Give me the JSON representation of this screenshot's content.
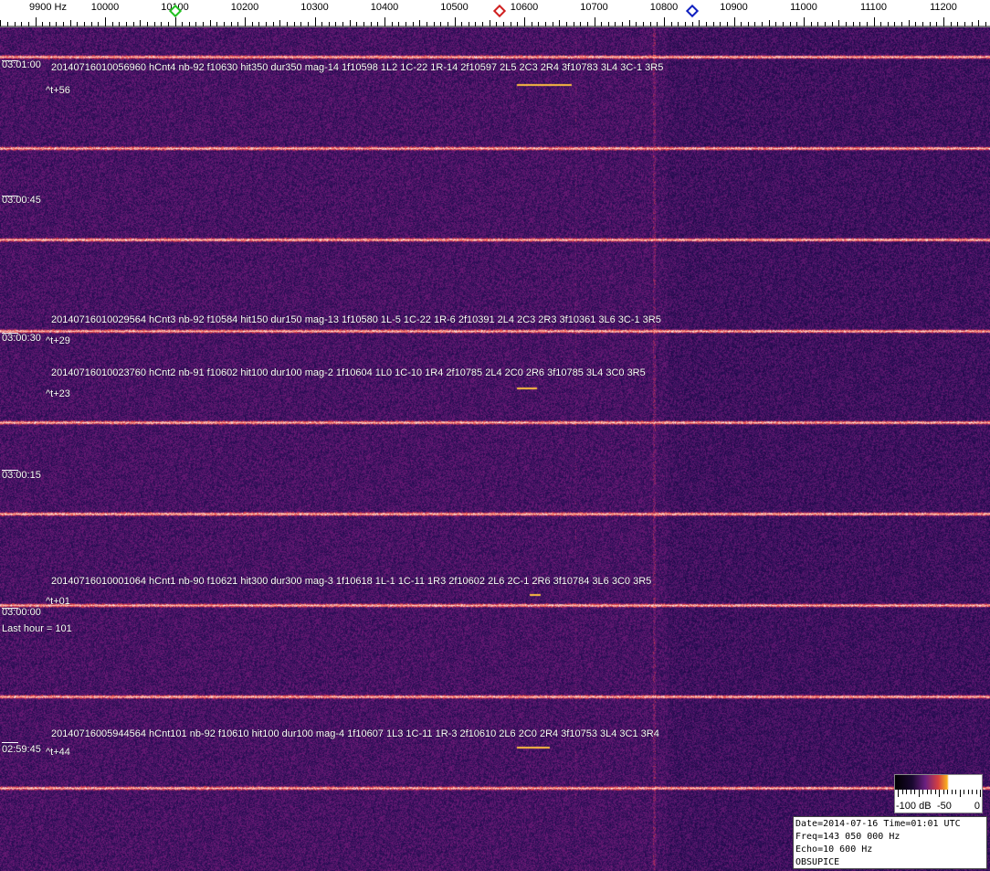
{
  "ruler": {
    "unit": "Hz",
    "labels": [
      "9900 Hz",
      "10000",
      "10100",
      "10200",
      "10300",
      "10400",
      "10500",
      "10600",
      "10700",
      "10800",
      "10900",
      "11000",
      "11100",
      "11200"
    ],
    "freqs": [
      9900,
      10000,
      10100,
      10200,
      10300,
      10400,
      10500,
      10600,
      10700,
      10800,
      10900,
      11000,
      11100,
      11200
    ],
    "markers": [
      {
        "name": "green-marker",
        "freq": 10100,
        "color": "#20c020"
      },
      {
        "name": "red-marker",
        "freq": 10565,
        "color": "#d02020"
      },
      {
        "name": "blue-marker",
        "freq": 10840,
        "color": "#1020c0"
      }
    ]
  },
  "time_labels": [
    "03:01:00",
    "03:00:45",
    "03:00:30",
    "03:00:15",
    "03:00:00",
    "02:59:45"
  ],
  "detections": [
    {
      "text": "20140716010056960 hCnt4 nb-92 f10630 hit350 dur350 mag-14 1f10598 1L2 1C-22 1R-14 2f10597 2L5 2C3 2R4 3f10783 3L4 3C-1 3R5",
      "delta": "^t+56"
    },
    {
      "text": "20140716010029564 hCnt3 nb-92 f10584 hit150 dur150 mag-13 1f10580 1L-5 1C-22 1R-6 2f10391 2L4 2C3 2R3 3f10361 3L6 3C-1 3R5",
      "delta": "^t+29"
    },
    {
      "text": "20140716010023760 hCnt2 nb-91 f10602 hit100 dur100 mag-2 1f10604 1L0 1C-10 1R4 2f10785 2L4 2C0 2R6 3f10785 3L4 3C0 3R5",
      "delta": "^t+23"
    },
    {
      "text": "20140716010001064 hCnt1 nb-90 f10621 hit300 dur300 mag-3 1f10618 1L-1 1C-11 1R3 2f10602 2L6 2C-1 2R6 3f10784 3L6 3C0 3R5",
      "delta": "^t+01"
    },
    {
      "text": "20140716005944564 hCnt101 nb-92 f10610 hit100 dur100 mag-4 1f10607 1L3 1C-11 1R-3 2f10610 2L6 2C0 2R4 3f10753 3L4 3C1 3R4",
      "delta": "^t+44"
    }
  ],
  "last_hour": "Last hour = 101",
  "colorbar": {
    "labels": [
      "-100 dB",
      "-50",
      "0"
    ]
  },
  "info": {
    "date_line": "Date=2014-07-16 Time=01:01 UTC",
    "freq_line": "Freq=143 050 000 Hz",
    "echo_line": "Echo=10 600 Hz",
    "station": "OBSUPICE"
  },
  "colors": {
    "background": "#2a1660",
    "carrier": "#ffd040",
    "marker_green": "#20c020",
    "marker_red": "#d02020",
    "marker_blue": "#1020c0"
  }
}
